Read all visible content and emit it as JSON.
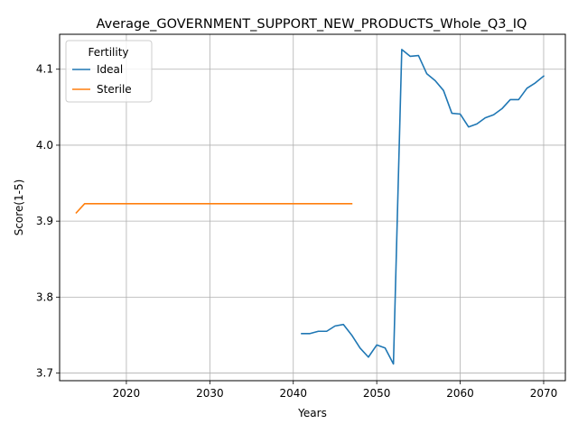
{
  "chart_data": {
    "type": "line",
    "title": "Average_GOVERNMENT_SUPPORT_NEW_PRODUCTS_Whole_Q3_IQ",
    "xlabel": "Years",
    "ylabel": "Score(1-5)",
    "xlim": [
      2012,
      2072.6
    ],
    "ylim": [
      3.69,
      4.146
    ],
    "xticks": [
      2020,
      2030,
      2040,
      2050,
      2060,
      2070
    ],
    "yticks": [
      3.7,
      3.8,
      3.9,
      4.0,
      4.1
    ],
    "ytick_labels": [
      "3.7",
      "3.8",
      "3.9",
      "4.0",
      "4.1"
    ],
    "grid": true,
    "legend": {
      "title": "Fertility",
      "position": "top-left"
    },
    "series": [
      {
        "name": "Ideal",
        "color": "#1f77b4",
        "points": [
          [
            2041,
            3.752
          ],
          [
            2042,
            3.752
          ],
          [
            2043,
            3.755
          ],
          [
            2044,
            3.755
          ],
          [
            2045,
            3.762
          ],
          [
            2046,
            3.764
          ],
          [
            2047,
            3.75
          ],
          [
            2048,
            3.733
          ],
          [
            2049,
            3.721
          ],
          [
            2050,
            3.737
          ],
          [
            2051,
            3.733
          ],
          [
            2052,
            3.712
          ],
          [
            2053,
            4.126
          ],
          [
            2054,
            4.117
          ],
          [
            2055,
            4.118
          ],
          [
            2056,
            4.094
          ],
          [
            2057,
            4.085
          ],
          [
            2058,
            4.072
          ],
          [
            2059,
            4.042
          ],
          [
            2060,
            4.041
          ],
          [
            2061,
            4.024
          ],
          [
            2062,
            4.028
          ],
          [
            2063,
            4.036
          ],
          [
            2064,
            4.04
          ],
          [
            2065,
            4.048
          ],
          [
            2066,
            4.06
          ],
          [
            2067,
            4.06
          ],
          [
            2068,
            4.075
          ],
          [
            2069,
            4.082
          ],
          [
            2070,
            4.091
          ]
        ]
      },
      {
        "name": "Sterile",
        "color": "#ff7f0e",
        "points": [
          [
            2014,
            3.911
          ],
          [
            2015,
            3.923
          ],
          [
            2016,
            3.923
          ],
          [
            2020,
            3.923
          ],
          [
            2025,
            3.923
          ],
          [
            2030,
            3.923
          ],
          [
            2035,
            3.923
          ],
          [
            2040,
            3.923
          ],
          [
            2045,
            3.923
          ],
          [
            2047,
            3.923
          ]
        ]
      }
    ]
  }
}
